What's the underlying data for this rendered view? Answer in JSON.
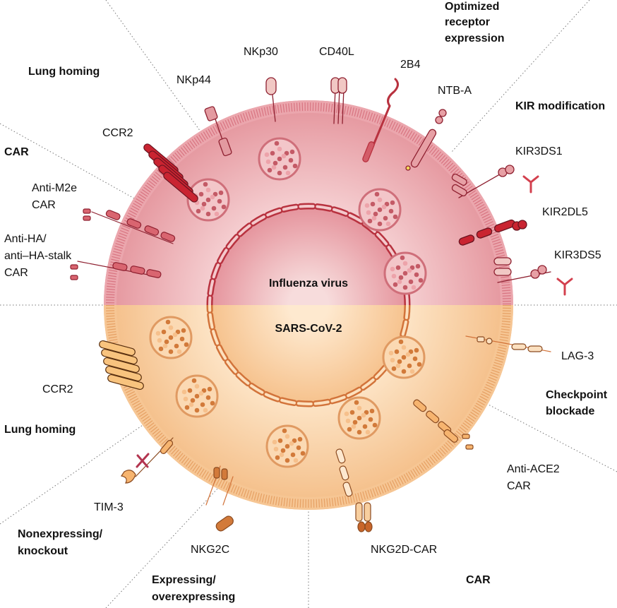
{
  "colors": {
    "influenza_cell": "#e58f99",
    "influenza_dark": "#b8323f",
    "sars_cell": "#f6c08c",
    "sars_dark": "#d2733a"
  },
  "centers": {
    "top": "Influenza virus",
    "bottom": "SARS-CoV-2"
  },
  "categories": {
    "optimized": [
      "Optimized",
      "receptor",
      "expression"
    ],
    "lung_homing_top": "Lung homing",
    "kir_modification": "KIR modification",
    "car_top": "CAR",
    "checkpoint": [
      "Checkpoint",
      "blockade"
    ],
    "lung_homing_bottom": "Lung homing",
    "nonexpressing": [
      "Nonexpressing/",
      "knockout"
    ],
    "expressing": [
      "Expressing/",
      "overexpressing"
    ],
    "car_bottom": "CAR"
  },
  "receptors": {
    "nkp44": "NKp44",
    "nkp30": "NKp30",
    "cd40l": "CD40L",
    "b2b4": "2B4",
    "ntba": "NTB-A",
    "ccr2_top": "CCR2",
    "kir3ds1": "KIR3DS1",
    "anti_m2e": [
      "Anti-M2e",
      "CAR"
    ],
    "kir2dl5": "KIR2DL5",
    "anti_ha": [
      "Anti-HA/",
      "anti–HA-stalk",
      "CAR"
    ],
    "kir3ds5": "KIR3DS5",
    "lag3": "LAG-3",
    "ccr2_bottom": "CCR2",
    "anti_ace2": [
      "Anti-ACE2",
      "CAR"
    ],
    "tim3": "TIM-3",
    "nkg2c": "NKG2C",
    "nkg2d_car": "NKG2D-CAR"
  }
}
